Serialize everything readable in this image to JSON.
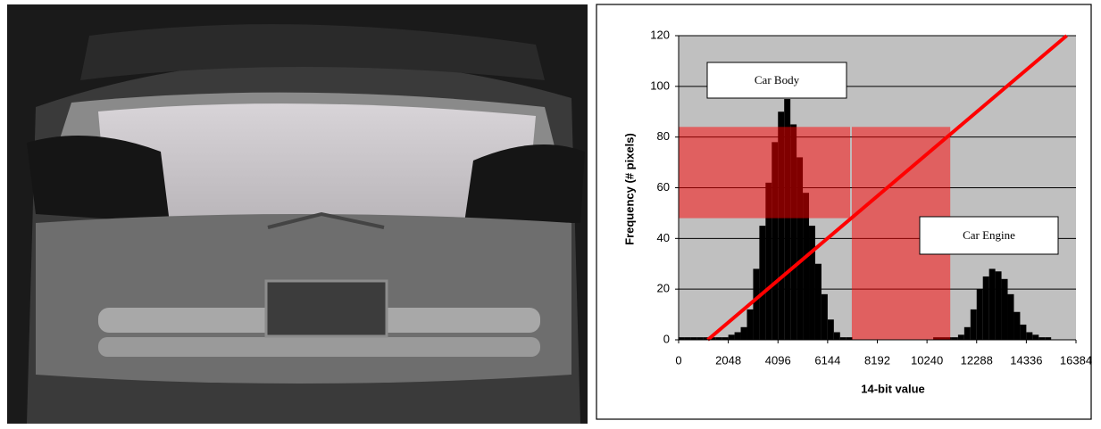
{
  "chart_data": {
    "type": "histogram",
    "xlabel": "14-bit value",
    "ylabel": "Frequency (# pixels)",
    "bins": [
      0,
      256,
      512,
      768,
      1024,
      1280,
      1536,
      1792,
      2048,
      2304,
      2560,
      2816,
      3072,
      3328,
      3584,
      3840,
      4096,
      4352,
      4608,
      4864,
      5120,
      5376,
      5632,
      5888,
      6144,
      6400,
      6656,
      6912,
      7168,
      7424,
      7680,
      7936,
      8192,
      8448,
      8704,
      8960,
      9216,
      9472,
      9728,
      9984,
      10240,
      10496,
      10752,
      11008,
      11264,
      11520,
      11776,
      12032,
      12288,
      12544,
      12800,
      13056,
      13312,
      13568,
      13824,
      14080,
      14336,
      14592,
      14848,
      15104,
      15360,
      15616,
      15872,
      16128,
      16384
    ],
    "values": [
      1,
      1,
      1,
      1,
      1,
      1,
      1,
      1,
      2,
      3,
      5,
      12,
      28,
      45,
      62,
      78,
      90,
      95,
      85,
      72,
      58,
      45,
      30,
      18,
      8,
      3,
      1,
      1,
      0,
      0,
      0,
      0,
      0,
      0,
      0,
      0,
      0,
      0,
      0,
      0,
      0,
      1,
      1,
      1,
      1,
      2,
      5,
      12,
      20,
      25,
      28,
      27,
      24,
      18,
      11,
      6,
      3,
      2,
      1,
      1,
      0,
      0,
      0,
      0
    ],
    "color": "#000000",
    "line": {
      "x": [
        1200,
        16000
      ],
      "values": [
        0,
        120
      ],
      "color": "#ff0000"
    },
    "regions": [
      {
        "x": [
          0,
          7070
        ],
        "y": [
          48,
          84
        ]
      },
      {
        "x": [
          7140,
          11200
        ],
        "y": [
          0,
          84
        ]
      }
    ],
    "region_color": "#ff0000",
    "annotations": [
      "Car Body",
      "Car Engine"
    ],
    "xlim": [
      0,
      16384
    ],
    "ylim": [
      0,
      120
    ],
    "xticks": [
      0,
      2048,
      4096,
      6144,
      8192,
      10240,
      12288,
      14336,
      16384
    ],
    "yticks": [
      0,
      20,
      40,
      60,
      80,
      100,
      120
    ],
    "grid": true,
    "plot_background": "#c0c0c0"
  }
}
